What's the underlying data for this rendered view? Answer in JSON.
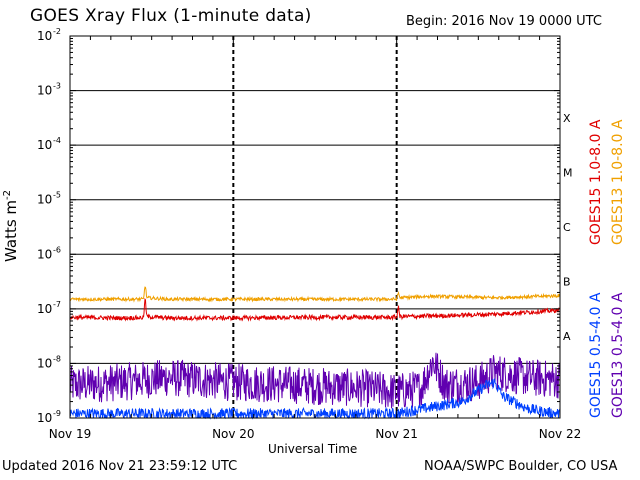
{
  "header": {
    "title": "GOES Xray Flux (1-minute data)",
    "begin": "Begin:  2016 Nov 19 0000 UTC"
  },
  "footer": {
    "updated": "Updated 2016 Nov 21 23:59:12 UTC",
    "credit": "NOAA/SWPC Boulder, CO USA"
  },
  "colors": {
    "goes15_long": "#e00000",
    "goes13_long": "#f0a000",
    "goes15_short": "#0040ff",
    "goes13_short": "#6000b0"
  },
  "chart_data": {
    "type": "line",
    "title": "GOES Xray Flux (1-minute data)",
    "xlabel": "Universal Time",
    "ylabel": "Watts m",
    "ylabel_sup": "-2",
    "y_scale": "log",
    "ylim": [
      1e-09,
      0.01
    ],
    "y_ticks": [
      {
        "base": "10",
        "exp": "-2",
        "value": 0.01
      },
      {
        "base": "10",
        "exp": "-3",
        "value": 0.001
      },
      {
        "base": "10",
        "exp": "-4",
        "value": 0.0001
      },
      {
        "base": "10",
        "exp": "-5",
        "value": 1e-05
      },
      {
        "base": "10",
        "exp": "-6",
        "value": 1e-06
      },
      {
        "base": "10",
        "exp": "-7",
        "value": 1e-07
      },
      {
        "base": "10",
        "exp": "-8",
        "value": 1e-08
      },
      {
        "base": "10",
        "exp": "-9",
        "value": 1e-09
      }
    ],
    "x_ticks": [
      "Nov 19",
      "Nov 20",
      "Nov 21",
      "Nov 22"
    ],
    "xlim_days": [
      0,
      3
    ],
    "flare_classes": [
      {
        "label": "X",
        "value": 0.0001
      },
      {
        "label": "M",
        "value": 1e-05
      },
      {
        "label": "C",
        "value": 1e-06
      },
      {
        "label": "B",
        "value": 1e-07
      },
      {
        "label": "A",
        "value": 1e-08
      }
    ],
    "grid": true,
    "series": [
      {
        "name": "GOES15 1.0-8.0 A",
        "key": "goes15_long",
        "x": [
          0,
          0.3,
          0.45,
          0.46,
          0.47,
          0.6,
          1.0,
          1.5,
          2.0,
          2.01,
          2.02,
          2.3,
          2.6,
          2.9,
          3.0
        ],
        "y": [
          7e-08,
          6.8e-08,
          6.9e-08,
          1.6e-07,
          7.2e-08,
          6.8e-08,
          6.8e-08,
          7e-08,
          7e-08,
          1.1e-07,
          7.2e-08,
          7.5e-08,
          8e-08,
          9e-08,
          9.5e-08
        ]
      },
      {
        "name": "GOES13 1.0-8.0 A",
        "key": "goes13_long",
        "x": [
          0,
          0.3,
          0.45,
          0.46,
          0.47,
          0.6,
          1.0,
          1.5,
          2.0,
          2.01,
          2.02,
          2.2,
          2.6,
          2.9,
          3.0
        ],
        "y": [
          1.5e-07,
          1.5e-07,
          1.5e-07,
          2.8e-07,
          1.6e-07,
          1.5e-07,
          1.5e-07,
          1.5e-07,
          1.5e-07,
          2e-07,
          1.6e-07,
          1.7e-07,
          1.6e-07,
          1.7e-07,
          1.75e-07
        ]
      },
      {
        "name": "GOES15 0.5-4.0 A",
        "key": "goes15_short",
        "x": [
          0,
          0.5,
          1.0,
          1.5,
          2.0,
          2.4,
          2.55,
          2.6,
          2.65,
          2.8,
          2.9,
          3.0
        ],
        "y": [
          1.2e-09,
          1.2e-09,
          1.2e-09,
          1.2e-09,
          1.2e-09,
          2e-09,
          4e-09,
          4.5e-09,
          2.5e-09,
          1.5e-09,
          1.3e-09,
          1.2e-09
        ]
      },
      {
        "name": "GOES13 0.5-4.0 A",
        "key": "goes13_short",
        "x": [
          0,
          0.3,
          0.6,
          1.0,
          1.4,
          1.8,
          2.0,
          2.15,
          2.22,
          2.3,
          2.5,
          2.6,
          2.8,
          3.0
        ],
        "y": [
          4e-09,
          4.5e-09,
          5.5e-09,
          4.5e-09,
          4e-09,
          3.5e-09,
          3e-09,
          3.5e-09,
          1.1e-08,
          4e-09,
          4.5e-09,
          7e-09,
          5.5e-09,
          5e-09
        ]
      }
    ]
  }
}
